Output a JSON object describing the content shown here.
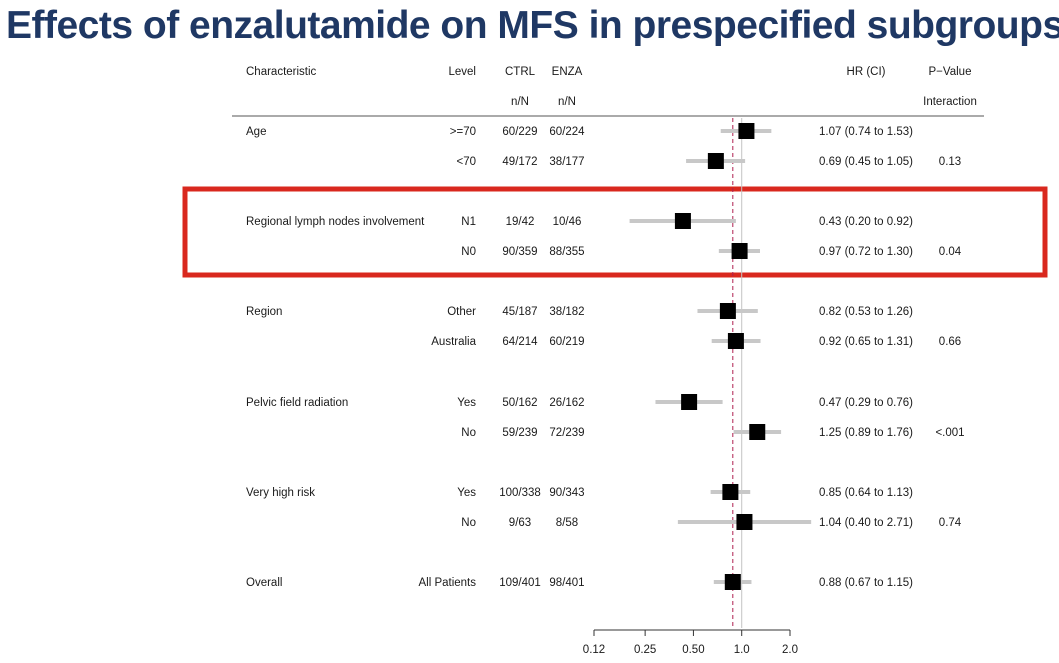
{
  "title": "Effects of enzalutamide on MFS in prespecified subgroups",
  "header": {
    "characteristic": "Characteristic",
    "level": "Level",
    "ctrl": "CTRL",
    "enza": "ENZA",
    "nN_ctrl": "n/N",
    "nN_enza": "n/N",
    "hr": "HR (CI)",
    "pvalue": "P−Value",
    "interaction": "Interaction"
  },
  "colors": {
    "title": "#1f3864",
    "highlight_box": "#d9281e",
    "marker": "#000000",
    "ci_line": "#c8c8c8",
    "reference_line": "#b02050"
  },
  "chart_data": {
    "type": "forest",
    "x_scale": "log",
    "xlim": [
      0.12,
      2.0
    ],
    "x_ticks": [
      0.12,
      0.25,
      0.5,
      1.0,
      2.0
    ],
    "x_tick_labels": [
      "0.12",
      "0.25",
      "0.50",
      "1.0",
      "2.0"
    ],
    "reference_line": 0.88,
    "highlighted_group": "Regional lymph nodes involvement",
    "rows": [
      {
        "group": "Age",
        "level": ">=70",
        "ctrl": "60/229",
        "enza": "60/224",
        "hr": 1.07,
        "lo": 0.74,
        "hi": 1.53,
        "ci_text": "1.07 (0.74 to 1.53)",
        "p": ""
      },
      {
        "group": "",
        "level": "<70",
        "ctrl": "49/172",
        "enza": "38/177",
        "hr": 0.69,
        "lo": 0.45,
        "hi": 1.05,
        "ci_text": "0.69 (0.45 to 1.05)",
        "p": "0.13"
      },
      {
        "group": "Regional lymph nodes involvement",
        "level": "N1",
        "ctrl": "19/42",
        "enza": "10/46",
        "hr": 0.43,
        "lo": 0.2,
        "hi": 0.92,
        "ci_text": "0.43 (0.20 to 0.92)",
        "p": ""
      },
      {
        "group": "",
        "level": "N0",
        "ctrl": "90/359",
        "enza": "88/355",
        "hr": 0.97,
        "lo": 0.72,
        "hi": 1.3,
        "ci_text": "0.97 (0.72 to 1.30)",
        "p": "0.04"
      },
      {
        "group": "Region",
        "level": "Other",
        "ctrl": "45/187",
        "enza": "38/182",
        "hr": 0.82,
        "lo": 0.53,
        "hi": 1.26,
        "ci_text": "0.82 (0.53 to 1.26)",
        "p": ""
      },
      {
        "group": "",
        "level": "Australia",
        "ctrl": "64/214",
        "enza": "60/219",
        "hr": 0.92,
        "lo": 0.65,
        "hi": 1.31,
        "ci_text": "0.92 (0.65 to 1.31)",
        "p": "0.66"
      },
      {
        "group": "Pelvic field radiation",
        "level": "Yes",
        "ctrl": "50/162",
        "enza": "26/162",
        "hr": 0.47,
        "lo": 0.29,
        "hi": 0.76,
        "ci_text": "0.47 (0.29 to 0.76)",
        "p": ""
      },
      {
        "group": "",
        "level": "No",
        "ctrl": "59/239",
        "enza": "72/239",
        "hr": 1.25,
        "lo": 0.89,
        "hi": 1.76,
        "ci_text": "1.25 (0.89 to 1.76)",
        "p": "<.001"
      },
      {
        "group": "Very high risk",
        "level": "Yes",
        "ctrl": "100/338",
        "enza": "90/343",
        "hr": 0.85,
        "lo": 0.64,
        "hi": 1.13,
        "ci_text": "0.85 (0.64 to 1.13)",
        "p": ""
      },
      {
        "group": "",
        "level": "No",
        "ctrl": "9/63",
        "enza": "8/58",
        "hr": 1.04,
        "lo": 0.4,
        "hi": 2.71,
        "ci_text": "1.04 (0.40 to 2.71)",
        "p": "0.74"
      },
      {
        "group": "Overall",
        "level": "All Patients",
        "ctrl": "109/401",
        "enza": "98/401",
        "hr": 0.88,
        "lo": 0.67,
        "hi": 1.15,
        "ci_text": "0.88 (0.67 to 1.15)",
        "p": ""
      }
    ]
  }
}
